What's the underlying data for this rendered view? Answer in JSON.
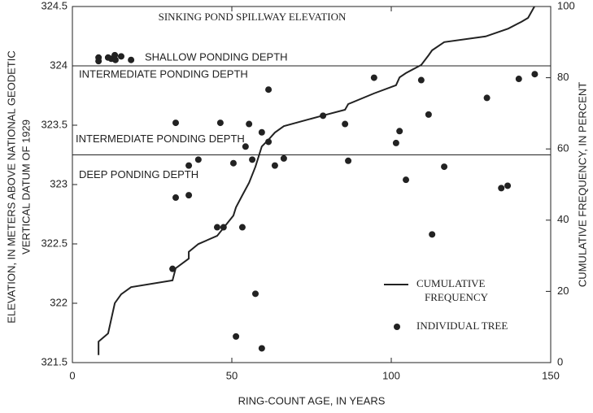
{
  "chart_data": {
    "type": "scatter",
    "xlabel": "RING-COUNT AGE, IN YEARS",
    "ylabel": [
      "ELEVATION, IN METERS ABOVE NATIONAL GEODETIC",
      "VERTICAL DATUM OF 1929"
    ],
    "y2label": "CUMULATIVE FREQUENCY, IN PERCENT",
    "xlim": [
      0,
      150
    ],
    "xticks": [
      0,
      50,
      100,
      150
    ],
    "ylim": [
      321.5,
      324.5
    ],
    "yticks": [
      321.5,
      322,
      322.5,
      323,
      323.5,
      324,
      324.5
    ],
    "y2lim": [
      0,
      100
    ],
    "y2ticks": [
      0,
      20,
      40,
      60,
      80,
      100
    ],
    "annotation": "SINKING POND SPILLWAY ELEVATION",
    "hlines": [
      {
        "value": 324,
        "label_above": "SHALLOW PONDING DEPTH",
        "label_below": "INTERMEDIATE PONDING DEPTH"
      },
      {
        "value": 323.25,
        "label_above": "INTERMEDIATE PONDING DEPTH",
        "label_below": "DEEP PONDING DEPTH"
      }
    ],
    "series": [
      {
        "name": "CUMULATIVE FREQUENCY",
        "type": "line",
        "axis": "y2",
        "color": "#222222",
        "x": [
          8.2,
          8.2,
          11.2,
          13.3,
          15.3,
          18.4,
          31.4,
          32.4,
          36.5,
          36.5,
          39.5,
          45.4,
          50.5,
          51.3,
          53.3,
          55.4,
          57.4,
          59.4,
          61.5,
          63.5,
          66.3,
          78.6,
          85.5,
          86.5,
          94.6,
          101.5,
          102.6,
          104.6,
          109.4,
          111.7,
          112.8,
          116.6,
          129.6,
          136.7,
          140.8,
          142.9,
          144.9
        ],
        "values": [
          2.1,
          5.9,
          8.2,
          16.7,
          19.2,
          21.2,
          23.1,
          26.5,
          29.2,
          31.1,
          33.3,
          35.6,
          41.3,
          43.6,
          47.0,
          50.5,
          55.0,
          60.7,
          62.6,
          64.6,
          66.4,
          69.4,
          71.0,
          72.6,
          75.6,
          77.9,
          80.1,
          81.3,
          83.6,
          86.3,
          87.7,
          90.0,
          91.6,
          93.8,
          95.7,
          96.8,
          100
        ]
      },
      {
        "name": "INDIVIDUAL TREE",
        "type": "scatter",
        "color": "#222222",
        "x": [
          8.2,
          8.2,
          11.2,
          12.2,
          13.3,
          13.5,
          15.3,
          18.4,
          31.4,
          32.4,
          32.4,
          36.5,
          36.5,
          39.5,
          45.4,
          46.4,
          47.4,
          50.5,
          51.3,
          53.3,
          54.3,
          55.4,
          56.4,
          57.4,
          59.4,
          59.4,
          61.5,
          61.5,
          63.5,
          66.3,
          78.6,
          85.5,
          86.5,
          94.6,
          101.5,
          102.6,
          104.6,
          109.4,
          111.7,
          112.8,
          116.6,
          130,
          134.5,
          136.5,
          140,
          145
        ],
        "values": [
          324.07,
          324.04,
          324.07,
          324.06,
          324.09,
          324.05,
          324.08,
          324.05,
          322.29,
          323.52,
          322.89,
          323.16,
          322.91,
          323.21,
          322.64,
          323.52,
          322.64,
          323.18,
          321.72,
          322.64,
          323.32,
          323.51,
          323.21,
          322.08,
          323.44,
          321.62,
          323.8,
          323.36,
          323.16,
          323.22,
          323.58,
          323.51,
          323.2,
          323.9,
          323.35,
          323.45,
          323.04,
          323.88,
          323.59,
          322.58,
          323.15,
          323.73,
          322.97,
          322.99,
          323.89,
          323.93
        ]
      }
    ]
  }
}
